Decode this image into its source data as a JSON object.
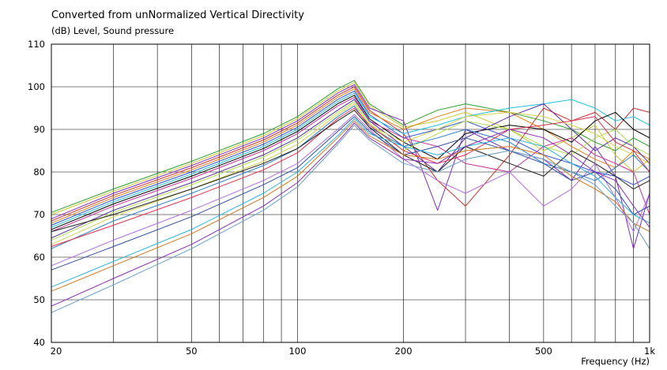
{
  "chart_data": {
    "type": "line",
    "title": "Converted from unNormalized Vertical Directivity",
    "ylabel": "(dB)  Level, Sound pressure",
    "xlabel": "Frequency  (Hz)",
    "x_scale": "log",
    "xlim": [
      20,
      1000
    ],
    "ylim": [
      40,
      110
    ],
    "grid": true,
    "legend": "none",
    "x_tick_labels": [
      {
        "value": 20,
        "label": "20"
      },
      {
        "value": 50,
        "label": "50"
      },
      {
        "value": 100,
        "label": "100"
      },
      {
        "value": 200,
        "label": "200"
      },
      {
        "value": 500,
        "label": "500"
      },
      {
        "value": 1000,
        "label": "1k"
      }
    ],
    "y_ticks": [
      40,
      50,
      60,
      70,
      80,
      90,
      100,
      110
    ],
    "x": [
      20,
      30,
      50,
      80,
      100,
      130,
      145,
      160,
      200,
      250,
      300,
      400,
      500,
      600,
      700,
      800,
      900,
      1000
    ],
    "series": [
      {
        "color": "#2f9e2f",
        "values": [
          70.5,
          76,
          82.5,
          89,
          93,
          99.5,
          101.5,
          96,
          91,
          94.5,
          96,
          94,
          92,
          90,
          87,
          85,
          88,
          86
        ]
      },
      {
        "color": "#c8c832",
        "values": [
          70,
          75.5,
          82,
          88.5,
          92.5,
          99,
          101,
          95.5,
          90.5,
          92,
          94,
          90,
          85,
          88,
          91,
          84,
          80,
          83
        ]
      },
      {
        "color": "#7d2fbf",
        "values": [
          69,
          75,
          81.5,
          88,
          92,
          98.5,
          100.5,
          95,
          92,
          71,
          90,
          85,
          83,
          78,
          86,
          79,
          62,
          75
        ]
      },
      {
        "color": "#c83232",
        "values": [
          68.5,
          74.5,
          81,
          87.5,
          91.5,
          98,
          100,
          94.5,
          89,
          78,
          72,
          84,
          95,
          92,
          94,
          90,
          95,
          94
        ]
      },
      {
        "color": "#e08020",
        "values": [
          68,
          74,
          80.5,
          87,
          91,
          97.5,
          99.5,
          94,
          90,
          93,
          95,
          94,
          90,
          86,
          83,
          81,
          85,
          83
        ]
      },
      {
        "color": "#3050d0",
        "values": [
          67.5,
          73.5,
          80,
          86.5,
          90.5,
          97,
          99,
          93.5,
          88,
          90,
          92,
          88,
          84,
          82,
          80,
          79,
          77,
          79
        ]
      },
      {
        "color": "#20c0e0",
        "values": [
          67,
          73,
          79.5,
          86,
          90,
          96.5,
          98.5,
          93,
          89,
          91,
          93,
          95,
          96,
          97,
          95,
          92,
          93,
          91
        ]
      },
      {
        "color": "#000000",
        "values": [
          66.5,
          72.5,
          79,
          85.5,
          89.5,
          96,
          98,
          92.5,
          87,
          83,
          89,
          91,
          90,
          87,
          92,
          94,
          90,
          88
        ]
      },
      {
        "color": "#c83296",
        "values": [
          66,
          72,
          78.5,
          85,
          89,
          95.5,
          97.5,
          92,
          88,
          86,
          82,
          80,
          86,
          88,
          84,
          82,
          80,
          70
        ]
      },
      {
        "color": "#5a2f9e",
        "values": [
          64.5,
          71,
          77.5,
          84,
          88,
          94.5,
          97,
          92,
          86,
          80,
          88,
          93,
          96,
          90,
          85,
          88,
          86,
          82
        ]
      },
      {
        "color": "#b0e050",
        "values": [
          64,
          70.5,
          77,
          83.5,
          87.5,
          94,
          96.5,
          91.5,
          85,
          89,
          92,
          90,
          86,
          84,
          88,
          90,
          86,
          84
        ]
      },
      {
        "color": "#d2d250",
        "values": [
          63,
          69.5,
          76,
          82.5,
          86.5,
          93.5,
          96,
          91,
          87,
          90,
          93,
          94,
          93,
          91,
          89,
          86,
          84,
          82
        ]
      },
      {
        "color": "#2f7dc8",
        "values": [
          62,
          68.5,
          75,
          81.5,
          85.5,
          93,
          95.5,
          90.5,
          86,
          88,
          90,
          87,
          82,
          80,
          78,
          81,
          84,
          80
        ]
      },
      {
        "color": "#e03050",
        "values": [
          62.5,
          67.5,
          74,
          80.5,
          84.5,
          92.5,
          95,
          91,
          85,
          82,
          84,
          90,
          91,
          92,
          93,
          87,
          85,
          80
        ]
      },
      {
        "color": "#202020",
        "values": [
          66,
          70,
          76,
          82,
          85.5,
          92,
          94.5,
          90.5,
          84,
          80,
          86,
          82,
          79,
          85,
          82,
          79,
          76,
          78
        ]
      },
      {
        "color": "#b070e0",
        "values": [
          58,
          64,
          71,
          78,
          82,
          90,
          93.5,
          90,
          83,
          78,
          75,
          80,
          72,
          76,
          82,
          74,
          66,
          75
        ]
      },
      {
        "color": "#3050a0",
        "values": [
          57,
          62.5,
          69.5,
          77,
          81,
          89.5,
          93,
          89.5,
          84,
          86,
          88,
          85,
          82,
          78,
          80,
          76,
          70,
          72
        ]
      },
      {
        "color": "#2fb0e0",
        "values": [
          53,
          59,
          66.5,
          75,
          80,
          88.5,
          92.5,
          89,
          86,
          84,
          86,
          88,
          86,
          82,
          79,
          74,
          70,
          68
        ]
      },
      {
        "color": "#d07820",
        "values": [
          52,
          58,
          65.5,
          74,
          79,
          88,
          92,
          88.5,
          84,
          83,
          85,
          86,
          84,
          79,
          76,
          73,
          68,
          66
        ]
      },
      {
        "color": "#8a2fb0",
        "values": [
          48.5,
          55,
          63,
          72,
          77.5,
          87,
          91.5,
          88,
          83,
          82,
          86,
          90,
          88,
          84,
          80,
          78,
          72,
          67
        ]
      },
      {
        "color": "#6a9ec8",
        "values": [
          47,
          53.5,
          62,
          71,
          76.5,
          86.5,
          91,
          87.5,
          82,
          80,
          83,
          85,
          83,
          80,
          77,
          72,
          68,
          62
        ]
      }
    ]
  }
}
